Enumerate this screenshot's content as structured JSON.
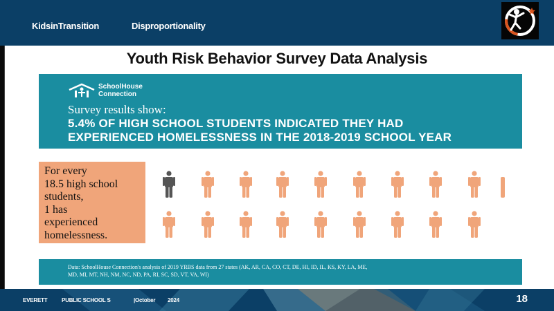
{
  "header": {
    "nav": [
      "KidsinTransition",
      "Disproportionality"
    ],
    "logo_icon": "star-figure-logo-icon",
    "background": "#0b3f66"
  },
  "slide": {
    "title": "Youth Risk Behavior Survey Data Analysis"
  },
  "banner": {
    "org_line1": "SchoolHouse",
    "org_line2": "Connection",
    "intro": "Survey results show:",
    "headline_line1": "5.4% OF HIGH SCHOOL STUDENTS INDICATED THEY HAD",
    "headline_line2": "EXPERIENCED HOMELESSNESS IN THE 2018-2019 SCHOOL YEAR",
    "color": "#1a8da0"
  },
  "callout": {
    "lines": [
      "For every",
      "18.5 high school",
      "students,",
      "1 has",
      "experienced",
      "homelessness."
    ],
    "color": "#f0a57a"
  },
  "figures": {
    "highlight_color": "#555555",
    "normal_color": "#f0a57a",
    "row1_count": 9,
    "row2_count": 9,
    "highlighted_index": 0
  },
  "data_note": {
    "line1": "Data: SchoolHouse Connection's analysis of 2019 YRBS data from 27 states (AK, AR, CA, CO, CT, DE, HI, ID, IL, KS, KY, LA, ME,",
    "line2": "MD, MI, MT, NH, NM, NC, ND, PA, RI, SC, SD, VT, VA, WI)"
  },
  "footer": {
    "org1": "EVERETT",
    "org2": "PUBLIC SCHOOL S",
    "date_month": "|October",
    "date_year": "2024",
    "page_number": "18"
  }
}
